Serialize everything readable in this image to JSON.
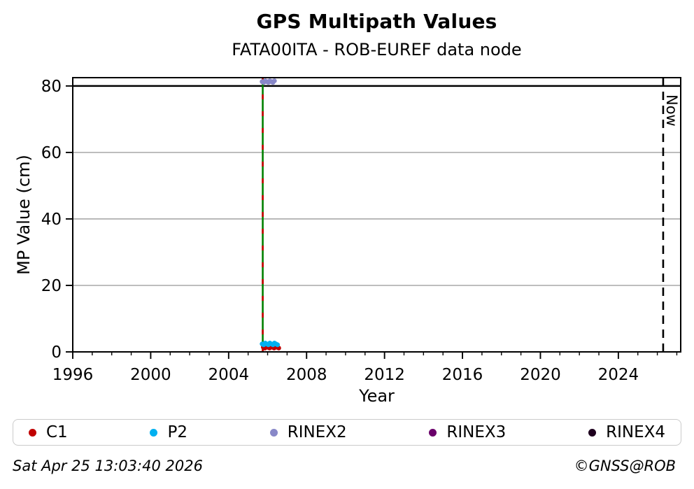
{
  "title": "GPS Multipath Values",
  "subtitle": "FATA00ITA - ROB-EUREF data node",
  "axes": {
    "ylabel": "MP Value (cm)",
    "xlabel": "Year"
  },
  "footer": {
    "timestamp": "Sat Apr 25 13:03:40 2026",
    "credit": "©GNSS@ROB"
  },
  "legend": {
    "items": [
      {
        "label": "C1",
        "color": "#c00000"
      },
      {
        "label": "P2",
        "color": "#00b0f0"
      },
      {
        "label": "RINEX2",
        "color": "#8888c8"
      },
      {
        "label": "RINEX3",
        "color": "#6a006a"
      },
      {
        "label": "RINEX4",
        "color": "#1e001e"
      }
    ]
  },
  "chart_data": {
    "type": "scatter",
    "title": "GPS Multipath Values",
    "subtitle": "FATA00ITA - ROB-EUREF data node",
    "xlabel": "Year",
    "ylabel": "MP Value (cm)",
    "xlim": [
      1996,
      2027.2
    ],
    "ylim": [
      0,
      82.5
    ],
    "xticks": [
      1996,
      2000,
      2004,
      2008,
      2012,
      2016,
      2020,
      2024
    ],
    "x_minor_step": 1,
    "yticks": [
      0,
      20,
      40,
      60,
      80
    ],
    "grid_y": [
      20,
      40,
      60
    ],
    "grid_color": "#b4b4b4",
    "hline": {
      "y": 80,
      "color": "#000000",
      "width": 2.4
    },
    "legend_position": "bottom",
    "series": [
      {
        "name": "C1",
        "color": "#c00000",
        "marker": "dot",
        "x_start": 2005.78,
        "x_end": 2006.55,
        "y": 1.4
      },
      {
        "name": "P2",
        "color": "#00b0f0",
        "marker": "dot",
        "x_start": 2005.72,
        "x_end": 2006.5,
        "y": 2.4
      },
      {
        "name": "RINEX2",
        "color": "#8888c8",
        "marker": "dot",
        "x_start": 2005.72,
        "x_end": 2006.38,
        "y": 81.3
      },
      {
        "name": "RINEX3",
        "color": "#6a006a",
        "marker": "dot",
        "points": []
      },
      {
        "name": "RINEX4",
        "color": "#1e001e",
        "marker": "dot",
        "points": []
      }
    ],
    "annotations": {
      "now_line": {
        "x": 2026.3,
        "label": "Now",
        "color": "#000000",
        "style": "dashed"
      },
      "event_line": {
        "x": 2005.75,
        "colors": [
          "#008000",
          "#cc0000"
        ],
        "style": "green solid with red dashes"
      }
    }
  }
}
